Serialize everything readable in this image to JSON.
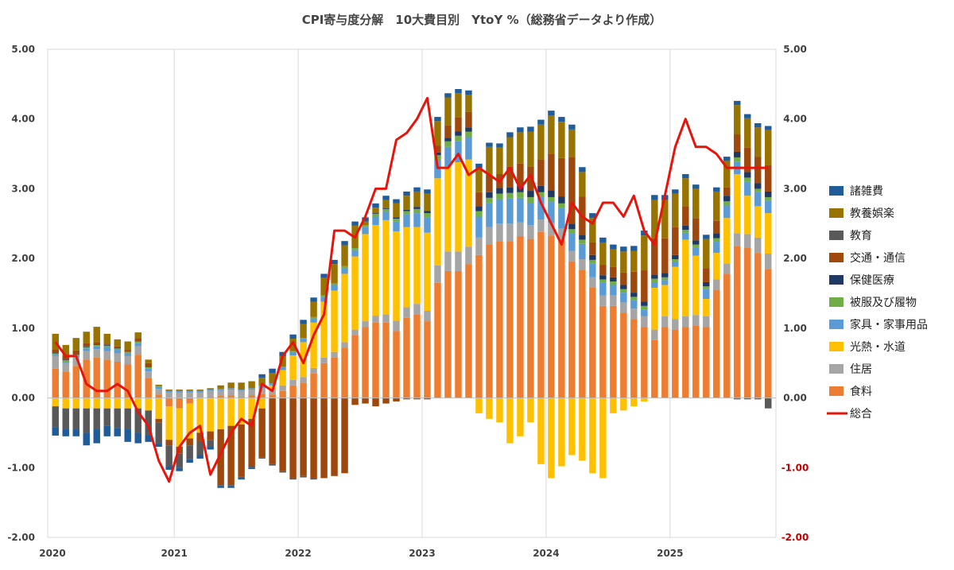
{
  "chart_data": {
    "type": "bar",
    "title": "CPI寄与度分解　10大費目別　YtoY %（総務省データより作成）",
    "xlabel": "",
    "ylabel": "",
    "ylim": [
      -2,
      5
    ],
    "y_ticks": [
      "5.00",
      "4.00",
      "3.00",
      "2.00",
      "1.00",
      "0.00",
      "-1.00",
      "-2.00"
    ],
    "x_ticks": [
      "2020",
      "2021",
      "2022",
      "2023",
      "2024",
      "2025"
    ],
    "stacked": true,
    "grid": "vertical",
    "legend_position": "right",
    "left_axis_color": "#404040",
    "right_axis_color": "#c00000",
    "months_per_year": 12,
    "series": [
      {
        "name": "食料",
        "color": "#ED7D31",
        "values": [
          0.42,
          0.38,
          0.46,
          0.55,
          0.58,
          0.55,
          0.52,
          0.48,
          0.62,
          0.28,
          0.05,
          -0.12,
          -0.15,
          -0.08,
          0.0,
          0.02,
          0.03,
          0.04,
          0.02,
          0.04,
          0.06,
          0.05,
          0.1,
          0.18,
          0.22,
          0.35,
          0.5,
          0.58,
          0.72,
          0.9,
          1.02,
          1.08,
          1.08,
          0.96,
          1.15,
          1.2,
          1.1,
          1.65,
          1.82,
          1.82,
          1.92,
          2.05,
          2.2,
          2.25,
          2.25,
          2.32,
          2.28,
          2.38,
          2.33,
          2.28,
          1.96,
          1.84,
          1.58,
          1.32,
          1.32,
          1.22,
          1.13,
          1.02,
          0.83,
          1.02,
          0.98,
          1.02,
          1.04,
          1.02,
          1.55,
          1.78,
          2.18,
          2.15,
          2.08,
          1.85
        ]
      },
      {
        "name": "住居",
        "color": "#A5A5A5",
        "values": [
          0.18,
          0.12,
          0.12,
          0.12,
          0.12,
          0.12,
          0.12,
          0.12,
          0.12,
          0.1,
          0.08,
          0.08,
          0.08,
          0.08,
          0.08,
          0.08,
          0.08,
          0.08,
          0.08,
          0.08,
          0.08,
          0.08,
          0.08,
          0.08,
          0.08,
          0.08,
          0.08,
          0.08,
          0.08,
          0.08,
          0.08,
          0.1,
          0.12,
          0.15,
          0.15,
          0.15,
          0.15,
          0.25,
          0.28,
          0.28,
          0.25,
          0.25,
          0.25,
          0.25,
          0.25,
          0.2,
          0.2,
          0.18,
          0.18,
          0.15,
          0.15,
          0.15,
          0.15,
          0.15,
          0.15,
          0.15,
          0.15,
          0.15,
          0.15,
          0.15,
          0.15,
          0.15,
          0.15,
          0.15,
          0.15,
          0.15,
          0.18,
          0.2,
          0.22,
          0.22
        ]
      },
      {
        "name": "光熱・水道",
        "color": "#FFC000",
        "values": [
          -0.12,
          -0.15,
          -0.15,
          -0.15,
          -0.15,
          -0.15,
          -0.15,
          -0.15,
          -0.15,
          -0.18,
          -0.3,
          -0.48,
          -0.55,
          -0.5,
          -0.5,
          -0.48,
          -0.45,
          -0.4,
          -0.38,
          -0.3,
          -0.15,
          0.05,
          0.22,
          0.35,
          0.5,
          0.65,
          0.8,
          0.88,
          0.98,
          1.05,
          1.25,
          1.3,
          1.35,
          1.28,
          1.15,
          1.1,
          1.12,
          1.25,
          1.22,
          1.28,
          1.25,
          -0.22,
          -0.3,
          -0.35,
          -0.65,
          -0.55,
          -0.35,
          -0.95,
          -1.15,
          -0.98,
          -0.82,
          -0.9,
          -1.08,
          -1.15,
          -0.22,
          -0.18,
          -0.12,
          -0.05,
          0.6,
          0.45,
          0.75,
          1.1,
          0.85,
          0.25,
          0.38,
          0.65,
          0.85,
          0.55,
          0.45,
          0.58
        ]
      },
      {
        "name": "家具・家事用品",
        "color": "#5B9BD5",
        "values": [
          0.02,
          0.02,
          0.02,
          0.04,
          0.04,
          0.06,
          0.05,
          0.04,
          0.05,
          0.04,
          0.03,
          0.02,
          0.02,
          0.02,
          0.02,
          0.02,
          0.02,
          0.02,
          0.02,
          0.02,
          0.03,
          0.03,
          0.04,
          0.05,
          0.05,
          0.06,
          0.07,
          0.08,
          0.08,
          0.09,
          0.1,
          0.12,
          0.12,
          0.14,
          0.18,
          0.2,
          0.22,
          0.26,
          0.28,
          0.3,
          0.32,
          0.3,
          0.34,
          0.35,
          0.36,
          0.35,
          0.32,
          0.32,
          0.3,
          0.3,
          0.25,
          0.22,
          0.2,
          0.18,
          0.15,
          0.14,
          0.12,
          0.1,
          0.08,
          0.07,
          0.07,
          0.1,
          0.12,
          0.14,
          0.16,
          0.18,
          0.18,
          0.2,
          0.2,
          0.18
        ]
      },
      {
        "name": "被服及び履物",
        "color": "#70AD47",
        "values": [
          0.02,
          0.02,
          0.02,
          0.02,
          0.02,
          0.02,
          0.02,
          0.02,
          0.02,
          0.02,
          0.01,
          0.0,
          0.0,
          0.0,
          0.0,
          0.0,
          0.0,
          0.0,
          0.0,
          0.0,
          0.0,
          0.0,
          0.01,
          0.01,
          0.01,
          0.02,
          0.02,
          0.02,
          0.03,
          0.03,
          0.03,
          0.04,
          0.04,
          0.04,
          0.05,
          0.06,
          0.06,
          0.07,
          0.08,
          0.08,
          0.08,
          0.08,
          0.08,
          0.08,
          0.08,
          0.08,
          0.08,
          0.07,
          0.07,
          0.06,
          0.06,
          0.06,
          0.05,
          0.05,
          0.05,
          0.05,
          0.05,
          0.05,
          0.05,
          0.04,
          0.04,
          0.04,
          0.04,
          0.04,
          0.05,
          0.06,
          0.06,
          0.06,
          0.05,
          0.05
        ]
      },
      {
        "name": "保健医療",
        "color": "#203864",
        "values": [
          0.01,
          0.01,
          0.01,
          0.01,
          0.01,
          0.01,
          0.01,
          0.0,
          0.0,
          0.0,
          0.0,
          0.0,
          0.0,
          0.0,
          0.0,
          0.0,
          0.0,
          0.0,
          0.0,
          0.0,
          0.0,
          0.0,
          0.0,
          0.0,
          0.0,
          0.0,
          0.0,
          0.0,
          0.0,
          0.0,
          0.0,
          0.01,
          0.01,
          0.02,
          0.02,
          0.03,
          0.03,
          0.04,
          0.05,
          0.06,
          0.06,
          0.07,
          0.08,
          0.08,
          0.08,
          0.09,
          0.09,
          0.09,
          0.1,
          0.1,
          0.08,
          0.07,
          0.07,
          0.06,
          0.06,
          0.06,
          0.06,
          0.06,
          0.06,
          0.06,
          0.06,
          0.06,
          0.06,
          0.06,
          0.07,
          0.08,
          0.08,
          0.08,
          0.08,
          0.08
        ]
      },
      {
        "name": "交通・通信",
        "color": "#9E480E",
        "values": [
          0.05,
          0.06,
          0.05,
          0.05,
          0.03,
          0.02,
          0.02,
          0.03,
          0.05,
          0.06,
          -0.05,
          -0.08,
          -0.1,
          -0.1,
          -0.12,
          -0.12,
          -0.8,
          -0.85,
          -0.75,
          -0.68,
          -0.7,
          -0.95,
          -1.05,
          -1.15,
          -1.12,
          -1.15,
          -1.15,
          -1.12,
          -1.08,
          -0.1,
          -0.08,
          -0.12,
          -0.08,
          -0.05,
          -0.02,
          -0.02,
          -0.02,
          0.1,
          0.18,
          0.2,
          0.22,
          0.2,
          0.25,
          0.2,
          0.3,
          0.32,
          0.35,
          0.38,
          0.52,
          0.55,
          0.95,
          0.55,
          0.18,
          0.15,
          0.15,
          0.18,
          0.3,
          0.45,
          0.52,
          0.5,
          0.4,
          0.28,
          0.32,
          0.2,
          0.18,
          0.12,
          0.25,
          0.35,
          0.38,
          0.38
        ]
      },
      {
        "name": "教育",
        "color": "#595959",
        "values": [
          -0.3,
          -0.3,
          -0.3,
          -0.35,
          -0.3,
          -0.25,
          -0.28,
          -0.3,
          -0.35,
          -0.35,
          -0.3,
          -0.3,
          -0.2,
          -0.2,
          -0.2,
          -0.1,
          -0.02,
          -0.02,
          -0.02,
          -0.02,
          -0.02,
          -0.02,
          -0.02,
          -0.02,
          -0.02,
          -0.02,
          0.0,
          0.0,
          0.0,
          0.0,
          0.0,
          0.0,
          0.0,
          0.0,
          0.0,
          0.0,
          0.0,
          0.0,
          0.0,
          0.0,
          0.0,
          0.0,
          0.0,
          0.0,
          0.0,
          0.0,
          0.0,
          0.0,
          0.0,
          0.0,
          0.0,
          0.0,
          0.0,
          0.0,
          0.0,
          0.0,
          0.0,
          0.0,
          0.0,
          0.0,
          0.0,
          0.0,
          0.0,
          0.0,
          0.0,
          0.0,
          -0.02,
          -0.02,
          -0.02,
          -0.15
        ]
      },
      {
        "name": "教養娯楽",
        "color": "#997300",
        "values": [
          0.22,
          0.15,
          0.18,
          0.16,
          0.22,
          0.14,
          0.1,
          0.12,
          0.08,
          0.05,
          0.02,
          0.02,
          0.02,
          0.02,
          0.02,
          0.02,
          0.05,
          0.08,
          0.1,
          0.1,
          0.12,
          0.15,
          0.15,
          0.18,
          0.2,
          0.22,
          0.25,
          0.28,
          0.3,
          0.32,
          0.05,
          0.08,
          0.12,
          0.2,
          0.2,
          0.22,
          0.25,
          0.35,
          0.4,
          0.35,
          0.25,
          0.35,
          0.4,
          0.38,
          0.42,
          0.45,
          0.5,
          0.5,
          0.55,
          0.52,
          0.4,
          0.35,
          0.35,
          0.32,
          0.25,
          0.3,
          0.3,
          0.5,
          0.55,
          0.55,
          0.48,
          0.4,
          0.42,
          0.42,
          0.42,
          0.38,
          0.42,
          0.42,
          0.42,
          0.5
        ]
      },
      {
        "name": "諸雑費",
        "color": "#1F5C99",
        "values": [
          -0.12,
          -0.1,
          -0.1,
          -0.18,
          -0.2,
          -0.15,
          -0.12,
          -0.18,
          -0.15,
          -0.1,
          -0.05,
          -0.05,
          -0.05,
          -0.05,
          -0.05,
          -0.04,
          -0.02,
          -0.02,
          -0.02,
          -0.02,
          0.05,
          0.06,
          0.06,
          0.06,
          0.06,
          0.06,
          0.06,
          0.06,
          0.06,
          0.06,
          0.06,
          0.06,
          0.06,
          0.06,
          0.06,
          0.06,
          0.06,
          0.06,
          0.06,
          0.06,
          0.06,
          0.06,
          0.06,
          0.06,
          0.07,
          0.07,
          0.07,
          0.07,
          0.07,
          0.07,
          0.07,
          0.07,
          0.07,
          0.07,
          0.07,
          0.07,
          0.07,
          0.07,
          0.07,
          0.07,
          0.06,
          0.06,
          0.06,
          0.06,
          0.06,
          0.06,
          0.06,
          0.06,
          0.06,
          0.06
        ]
      }
    ],
    "line": {
      "name": "総合",
      "color": "#E8140C",
      "values": [
        0.8,
        0.6,
        0.6,
        0.2,
        0.1,
        0.1,
        0.2,
        0.1,
        -0.2,
        -0.4,
        -0.9,
        -1.2,
        -0.7,
        -0.5,
        -0.4,
        -1.1,
        -0.8,
        -0.5,
        -0.3,
        -0.4,
        0.2,
        0.1,
        0.6,
        0.8,
        0.5,
        0.9,
        1.2,
        2.4,
        2.4,
        2.3,
        2.6,
        3.0,
        3.0,
        3.7,
        3.8,
        4.0,
        4.3,
        3.3,
        3.3,
        3.5,
        3.2,
        3.3,
        3.2,
        3.1,
        3.3,
        3.0,
        3.2,
        2.8,
        2.5,
        2.2,
        2.8,
        2.6,
        2.5,
        2.8,
        2.8,
        2.6,
        2.9,
        2.4,
        2.2,
        2.9,
        3.6,
        4.0,
        3.6,
        3.6,
        3.5,
        3.3,
        3.3,
        3.3,
        3.3,
        3.3
      ]
    }
  }
}
